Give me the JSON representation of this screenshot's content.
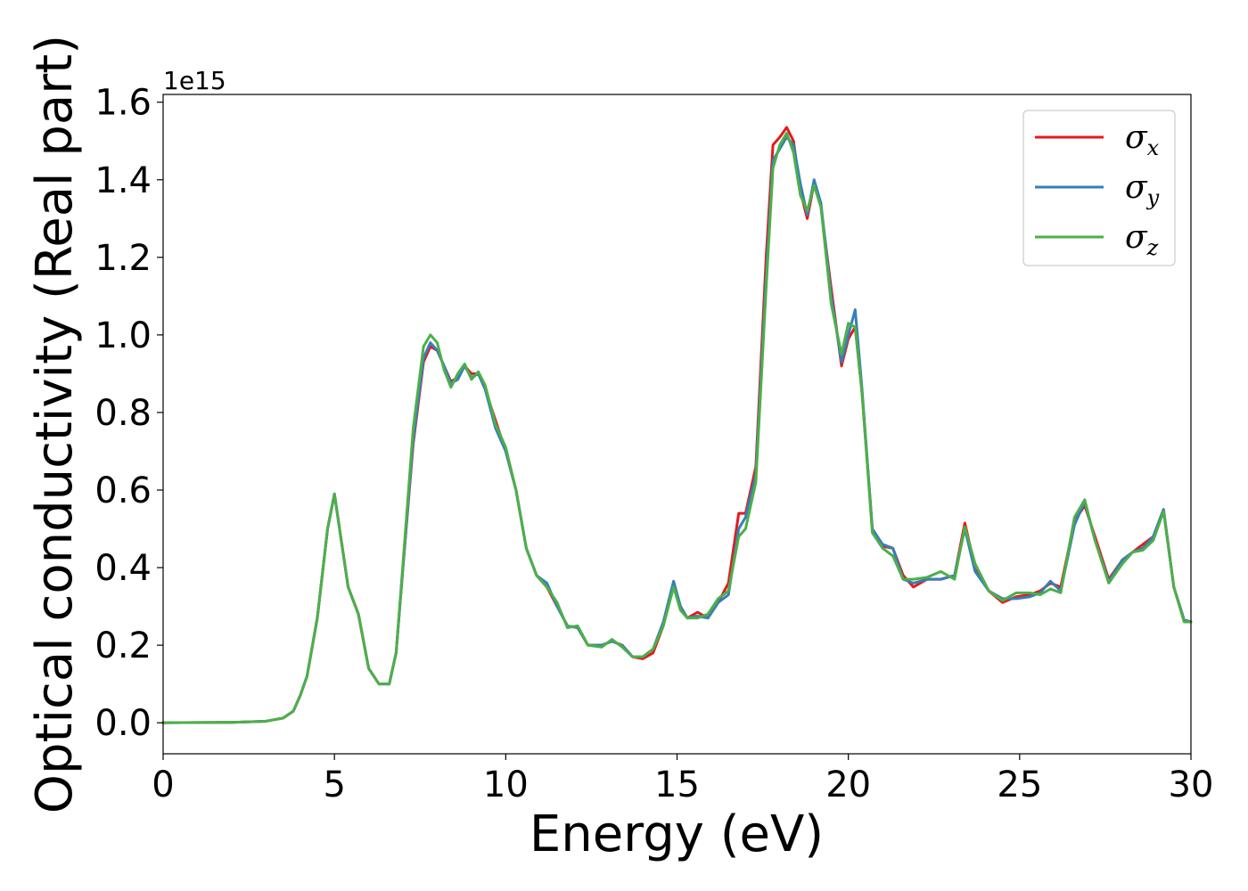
{
  "chart_data": {
    "type": "line",
    "xlabel": "Energy (eV)",
    "ylabel": "Optical conductivity (Real part)",
    "y_offset_label": "1e15",
    "xlim": [
      0,
      30
    ],
    "ylim": [
      -0.08,
      1.62
    ],
    "xticks": [
      0,
      5,
      10,
      15,
      20,
      25,
      30
    ],
    "xtick_labels": [
      "0",
      "5",
      "10",
      "15",
      "20",
      "25",
      "30"
    ],
    "yticks": [
      0.0,
      0.2,
      0.4,
      0.6,
      0.8,
      1.0,
      1.2,
      1.4,
      1.6
    ],
    "ytick_labels": [
      "0.0",
      "0.2",
      "0.4",
      "0.6",
      "0.8",
      "1.0",
      "1.2",
      "1.4",
      "1.6"
    ],
    "grid": false,
    "legend_position": "top-right",
    "series": [
      {
        "name": "σ",
        "subscript": "x",
        "color": "#e41a1c",
        "points": [
          [
            0,
            0
          ],
          [
            2,
            0.001
          ],
          [
            3,
            0.004
          ],
          [
            3.5,
            0.012
          ],
          [
            3.8,
            0.03
          ],
          [
            4.0,
            0.07
          ],
          [
            4.2,
            0.12
          ],
          [
            4.5,
            0.27
          ],
          [
            4.8,
            0.5
          ],
          [
            5.0,
            0.59
          ],
          [
            5.2,
            0.47
          ],
          [
            5.4,
            0.35
          ],
          [
            5.7,
            0.28
          ],
          [
            6.0,
            0.14
          ],
          [
            6.3,
            0.1
          ],
          [
            6.6,
            0.1
          ],
          [
            6.8,
            0.18
          ],
          [
            7.0,
            0.4
          ],
          [
            7.3,
            0.72
          ],
          [
            7.6,
            0.93
          ],
          [
            7.8,
            0.97
          ],
          [
            8.0,
            0.96
          ],
          [
            8.2,
            0.92
          ],
          [
            8.4,
            0.88
          ],
          [
            8.6,
            0.89
          ],
          [
            8.8,
            0.92
          ],
          [
            9.0,
            0.9
          ],
          [
            9.2,
            0.9
          ],
          [
            9.4,
            0.86
          ],
          [
            9.7,
            0.78
          ],
          [
            10.0,
            0.7
          ],
          [
            10.3,
            0.6
          ],
          [
            10.6,
            0.45
          ],
          [
            10.9,
            0.38
          ],
          [
            11.2,
            0.35
          ],
          [
            11.5,
            0.3
          ],
          [
            11.8,
            0.25
          ],
          [
            12.1,
            0.245
          ],
          [
            12.4,
            0.2
          ],
          [
            12.8,
            0.2
          ],
          [
            13.1,
            0.21
          ],
          [
            13.4,
            0.2
          ],
          [
            13.7,
            0.17
          ],
          [
            14.0,
            0.165
          ],
          [
            14.3,
            0.18
          ],
          [
            14.6,
            0.25
          ],
          [
            14.9,
            0.36
          ],
          [
            15.1,
            0.3
          ],
          [
            15.3,
            0.27
          ],
          [
            15.6,
            0.285
          ],
          [
            15.9,
            0.27
          ],
          [
            16.2,
            0.31
          ],
          [
            16.5,
            0.36
          ],
          [
            16.8,
            0.54
          ],
          [
            17.0,
            0.54
          ],
          [
            17.3,
            0.66
          ],
          [
            17.6,
            1.2
          ],
          [
            17.8,
            1.49
          ],
          [
            18.0,
            1.51
          ],
          [
            18.2,
            1.535
          ],
          [
            18.4,
            1.5
          ],
          [
            18.6,
            1.37
          ],
          [
            18.8,
            1.3
          ],
          [
            19.0,
            1.39
          ],
          [
            19.2,
            1.33
          ],
          [
            19.5,
            1.12
          ],
          [
            19.8,
            0.92
          ],
          [
            20.0,
            0.99
          ],
          [
            20.2,
            1.02
          ],
          [
            20.4,
            0.85
          ],
          [
            20.7,
            0.5
          ],
          [
            21.0,
            0.455
          ],
          [
            21.3,
            0.45
          ],
          [
            21.6,
            0.38
          ],
          [
            21.9,
            0.35
          ],
          [
            22.3,
            0.37
          ],
          [
            22.7,
            0.37
          ],
          [
            23.1,
            0.38
          ],
          [
            23.4,
            0.515
          ],
          [
            23.7,
            0.4
          ],
          [
            24.1,
            0.34
          ],
          [
            24.5,
            0.31
          ],
          [
            24.9,
            0.325
          ],
          [
            25.3,
            0.33
          ],
          [
            25.6,
            0.34
          ],
          [
            25.9,
            0.36
          ],
          [
            26.2,
            0.35
          ],
          [
            26.6,
            0.52
          ],
          [
            26.9,
            0.56
          ],
          [
            27.2,
            0.48
          ],
          [
            27.6,
            0.37
          ],
          [
            28.0,
            0.42
          ],
          [
            28.3,
            0.44
          ],
          [
            28.6,
            0.46
          ],
          [
            28.9,
            0.48
          ],
          [
            29.2,
            0.55
          ],
          [
            29.5,
            0.35
          ],
          [
            29.8,
            0.265
          ],
          [
            30,
            0.26
          ]
        ]
      },
      {
        "name": "σ",
        "subscript": "y",
        "color": "#377eb8",
        "points": [
          [
            0,
            0
          ],
          [
            2,
            0.001
          ],
          [
            3,
            0.004
          ],
          [
            3.5,
            0.012
          ],
          [
            3.8,
            0.03
          ],
          [
            4.0,
            0.07
          ],
          [
            4.2,
            0.12
          ],
          [
            4.5,
            0.27
          ],
          [
            4.8,
            0.5
          ],
          [
            5.0,
            0.59
          ],
          [
            5.2,
            0.47
          ],
          [
            5.4,
            0.35
          ],
          [
            5.7,
            0.28
          ],
          [
            6.0,
            0.14
          ],
          [
            6.3,
            0.1
          ],
          [
            6.6,
            0.1
          ],
          [
            6.8,
            0.18
          ],
          [
            7.0,
            0.4
          ],
          [
            7.3,
            0.73
          ],
          [
            7.6,
            0.94
          ],
          [
            7.8,
            0.98
          ],
          [
            8.0,
            0.96
          ],
          [
            8.2,
            0.92
          ],
          [
            8.4,
            0.875
          ],
          [
            8.6,
            0.885
          ],
          [
            8.8,
            0.92
          ],
          [
            9.0,
            0.89
          ],
          [
            9.2,
            0.9
          ],
          [
            9.4,
            0.86
          ],
          [
            9.7,
            0.76
          ],
          [
            10.0,
            0.7
          ],
          [
            10.3,
            0.6
          ],
          [
            10.6,
            0.45
          ],
          [
            10.9,
            0.38
          ],
          [
            11.2,
            0.36
          ],
          [
            11.5,
            0.3
          ],
          [
            11.8,
            0.25
          ],
          [
            12.1,
            0.245
          ],
          [
            12.4,
            0.2
          ],
          [
            12.8,
            0.2
          ],
          [
            13.1,
            0.21
          ],
          [
            13.4,
            0.2
          ],
          [
            13.7,
            0.17
          ],
          [
            14.0,
            0.17
          ],
          [
            14.3,
            0.19
          ],
          [
            14.6,
            0.26
          ],
          [
            14.9,
            0.365
          ],
          [
            15.1,
            0.3
          ],
          [
            15.3,
            0.27
          ],
          [
            15.6,
            0.275
          ],
          [
            15.9,
            0.27
          ],
          [
            16.2,
            0.31
          ],
          [
            16.5,
            0.33
          ],
          [
            16.8,
            0.5
          ],
          [
            17.0,
            0.53
          ],
          [
            17.3,
            0.64
          ],
          [
            17.6,
            1.15
          ],
          [
            17.8,
            1.45
          ],
          [
            18.0,
            1.48
          ],
          [
            18.2,
            1.51
          ],
          [
            18.4,
            1.49
          ],
          [
            18.6,
            1.39
          ],
          [
            18.8,
            1.31
          ],
          [
            19.0,
            1.4
          ],
          [
            19.2,
            1.34
          ],
          [
            19.5,
            1.1
          ],
          [
            19.8,
            0.93
          ],
          [
            20.0,
            1.0
          ],
          [
            20.2,
            1.065
          ],
          [
            20.4,
            0.86
          ],
          [
            20.7,
            0.5
          ],
          [
            21.0,
            0.46
          ],
          [
            21.3,
            0.45
          ],
          [
            21.6,
            0.37
          ],
          [
            21.9,
            0.36
          ],
          [
            22.3,
            0.37
          ],
          [
            22.7,
            0.37
          ],
          [
            23.1,
            0.38
          ],
          [
            23.4,
            0.5
          ],
          [
            23.7,
            0.39
          ],
          [
            24.1,
            0.34
          ],
          [
            24.5,
            0.32
          ],
          [
            24.9,
            0.32
          ],
          [
            25.3,
            0.325
          ],
          [
            25.6,
            0.335
          ],
          [
            25.9,
            0.365
          ],
          [
            26.2,
            0.34
          ],
          [
            26.6,
            0.51
          ],
          [
            26.9,
            0.57
          ],
          [
            27.2,
            0.47
          ],
          [
            27.6,
            0.365
          ],
          [
            28.0,
            0.42
          ],
          [
            28.3,
            0.44
          ],
          [
            28.6,
            0.45
          ],
          [
            28.9,
            0.48
          ],
          [
            29.2,
            0.55
          ],
          [
            29.5,
            0.35
          ],
          [
            29.8,
            0.265
          ],
          [
            30,
            0.26
          ]
        ]
      },
      {
        "name": "σ",
        "subscript": "z",
        "color": "#4daf4a",
        "points": [
          [
            0,
            0
          ],
          [
            2,
            0.001
          ],
          [
            3,
            0.004
          ],
          [
            3.5,
            0.012
          ],
          [
            3.8,
            0.03
          ],
          [
            4.0,
            0.07
          ],
          [
            4.2,
            0.12
          ],
          [
            4.5,
            0.27
          ],
          [
            4.8,
            0.5
          ],
          [
            5.0,
            0.59
          ],
          [
            5.2,
            0.47
          ],
          [
            5.4,
            0.35
          ],
          [
            5.7,
            0.28
          ],
          [
            6.0,
            0.14
          ],
          [
            6.3,
            0.1
          ],
          [
            6.6,
            0.1
          ],
          [
            6.8,
            0.18
          ],
          [
            7.0,
            0.41
          ],
          [
            7.3,
            0.76
          ],
          [
            7.6,
            0.97
          ],
          [
            7.8,
            1.0
          ],
          [
            8.0,
            0.98
          ],
          [
            8.2,
            0.91
          ],
          [
            8.4,
            0.865
          ],
          [
            8.6,
            0.9
          ],
          [
            8.8,
            0.925
          ],
          [
            9.0,
            0.885
          ],
          [
            9.2,
            0.905
          ],
          [
            9.4,
            0.87
          ],
          [
            9.7,
            0.77
          ],
          [
            10.0,
            0.71
          ],
          [
            10.3,
            0.6
          ],
          [
            10.6,
            0.45
          ],
          [
            10.9,
            0.38
          ],
          [
            11.2,
            0.35
          ],
          [
            11.5,
            0.31
          ],
          [
            11.8,
            0.245
          ],
          [
            12.1,
            0.25
          ],
          [
            12.4,
            0.2
          ],
          [
            12.8,
            0.195
          ],
          [
            13.1,
            0.215
          ],
          [
            13.4,
            0.195
          ],
          [
            13.7,
            0.17
          ],
          [
            14.0,
            0.17
          ],
          [
            14.3,
            0.19
          ],
          [
            14.6,
            0.25
          ],
          [
            14.9,
            0.35
          ],
          [
            15.1,
            0.29
          ],
          [
            15.3,
            0.27
          ],
          [
            15.6,
            0.27
          ],
          [
            15.9,
            0.28
          ],
          [
            16.2,
            0.32
          ],
          [
            16.5,
            0.34
          ],
          [
            16.8,
            0.48
          ],
          [
            17.0,
            0.5
          ],
          [
            17.3,
            0.62
          ],
          [
            17.6,
            1.12
          ],
          [
            17.8,
            1.43
          ],
          [
            18.0,
            1.49
          ],
          [
            18.2,
            1.52
          ],
          [
            18.4,
            1.47
          ],
          [
            18.6,
            1.36
          ],
          [
            18.8,
            1.32
          ],
          [
            19.0,
            1.385
          ],
          [
            19.2,
            1.33
          ],
          [
            19.5,
            1.08
          ],
          [
            19.8,
            0.95
          ],
          [
            20.0,
            1.03
          ],
          [
            20.2,
            1.02
          ],
          [
            20.4,
            0.85
          ],
          [
            20.7,
            0.49
          ],
          [
            21.0,
            0.45
          ],
          [
            21.3,
            0.43
          ],
          [
            21.6,
            0.37
          ],
          [
            21.9,
            0.37
          ],
          [
            22.3,
            0.375
          ],
          [
            22.7,
            0.39
          ],
          [
            23.1,
            0.37
          ],
          [
            23.4,
            0.505
          ],
          [
            23.7,
            0.41
          ],
          [
            24.1,
            0.34
          ],
          [
            24.5,
            0.315
          ],
          [
            24.9,
            0.335
          ],
          [
            25.3,
            0.335
          ],
          [
            25.6,
            0.33
          ],
          [
            25.9,
            0.345
          ],
          [
            26.2,
            0.335
          ],
          [
            26.6,
            0.53
          ],
          [
            26.9,
            0.575
          ],
          [
            27.2,
            0.47
          ],
          [
            27.6,
            0.36
          ],
          [
            28.0,
            0.41
          ],
          [
            28.3,
            0.44
          ],
          [
            28.6,
            0.445
          ],
          [
            28.9,
            0.47
          ],
          [
            29.2,
            0.545
          ],
          [
            29.5,
            0.35
          ],
          [
            29.8,
            0.26
          ],
          [
            30,
            0.26
          ]
        ]
      }
    ]
  }
}
